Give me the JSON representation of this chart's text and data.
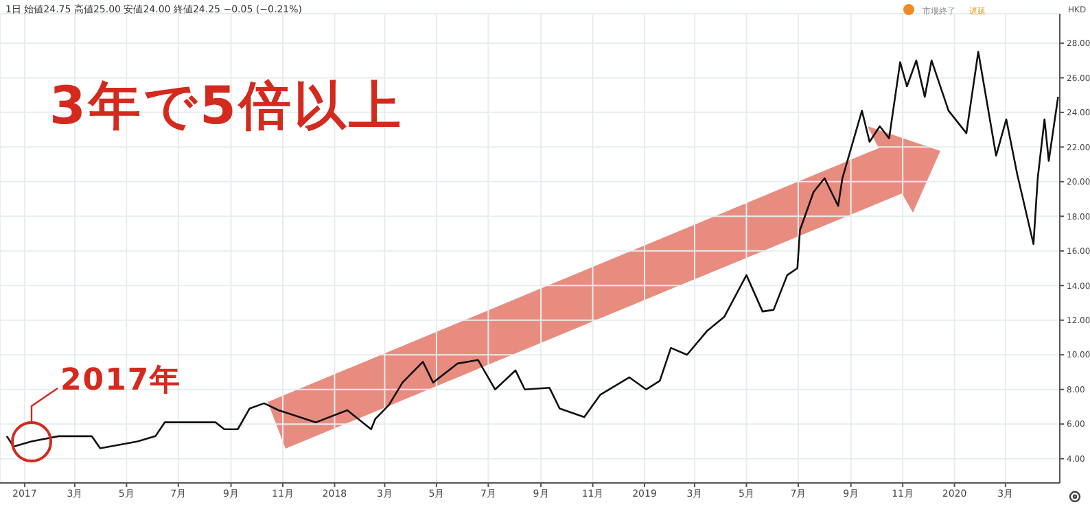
{
  "chart_data": {
    "type": "line",
    "title": "3年で5倍以上",
    "subtitle": "1日 始値24.75 高値25.00 安値24.00 終値24.25 −0.05 (−0.21%)",
    "annotations": [
      "2017年",
      "市場終了",
      "遅延",
      "HKD"
    ],
    "x": [
      "2016-12-11",
      "2016-12-19",
      "2017-01-09",
      "2017-02-10",
      "2017-03-21",
      "2017-03-31",
      "2017-05-14",
      "2017-06-04",
      "2017-06-15",
      "2017-08-14",
      "2017-08-24",
      "2017-09-09",
      "2017-09-23",
      "2017-10-10",
      "2017-10-27",
      "2017-12-10",
      "2018-01-16",
      "2018-02-13",
      "2018-02-18",
      "2018-03-06",
      "2018-03-22",
      "2018-04-15",
      "2018-04-27",
      "2018-05-26",
      "2018-06-19",
      "2018-07-09",
      "2018-08-02",
      "2018-08-13",
      "2018-09-11",
      "2018-09-23",
      "2018-10-22",
      "2018-11-10",
      "2018-12-14",
      "2019-01-03",
      "2019-01-19",
      "2019-02-01",
      "2019-02-20",
      "2019-03-16",
      "2019-04-05",
      "2019-05-01",
      "2019-05-20",
      "2019-06-02",
      "2019-06-18",
      "2019-06-30",
      "2019-07-03",
      "2019-07-19",
      "2019-08-01",
      "2019-08-17",
      "2019-08-22",
      "2019-09-14",
      "2019-09-23",
      "2019-10-05",
      "2019-10-16",
      "2019-10-29",
      "2019-11-06",
      "2019-11-17",
      "2019-11-27",
      "2019-12-05",
      "2019-12-25",
      "2020-01-15",
      "2020-01-29",
      "2020-02-19",
      "2020-03-02",
      "2020-03-15",
      "2020-04-03",
      "2020-04-08",
      "2020-04-16",
      "2020-04-21",
      "2020-05-02"
    ],
    "series": [
      {
        "color": "#111111",
        "values": [
          5.3,
          4.7,
          5.0,
          5.3,
          5.3,
          4.6,
          5.0,
          5.3,
          6.1,
          6.1,
          5.7,
          5.7,
          6.9,
          7.2,
          6.8,
          6.1,
          6.8,
          5.7,
          6.3,
          7.1,
          8.4,
          9.6,
          8.4,
          9.5,
          9.7,
          8.0,
          9.1,
          8.0,
          8.1,
          6.9,
          6.4,
          7.7,
          8.7,
          8.0,
          8.5,
          10.4,
          10.0,
          11.4,
          12.2,
          14.6,
          12.5,
          12.6,
          14.6,
          15.0,
          17.2,
          19.4,
          20.2,
          18.6,
          20.2,
          24.1,
          22.3,
          23.2,
          22.5,
          26.9,
          25.5,
          27.0,
          24.9,
          27.0,
          24.1,
          22.8,
          27.5,
          21.5,
          23.6,
          20.4,
          16.4,
          20.2,
          23.6,
          21.2,
          24.9
        ]
      }
    ],
    "xlim": [
      "2016-12-03",
      "2020-05-04"
    ],
    "xticks": [
      {
        "value": "2017-01-01",
        "label": "2017"
      },
      {
        "value": "2017-03-01",
        "label": "3月"
      },
      {
        "value": "2017-05-01",
        "label": "5月"
      },
      {
        "value": "2017-07-01",
        "label": "7月"
      },
      {
        "value": "2017-09-01",
        "label": "9月"
      },
      {
        "value": "2017-11-01",
        "label": "11月"
      },
      {
        "value": "2018-01-01",
        "label": "2018"
      },
      {
        "value": "2018-03-01",
        "label": "3月"
      },
      {
        "value": "2018-05-01",
        "label": "5月"
      },
      {
        "value": "2018-07-01",
        "label": "7月"
      },
      {
        "value": "2018-09-01",
        "label": "9月"
      },
      {
        "value": "2018-11-01",
        "label": "11月"
      },
      {
        "value": "2019-01-01",
        "label": "2019"
      },
      {
        "value": "2019-03-01",
        "label": "3月"
      },
      {
        "value": "2019-05-01",
        "label": "5月"
      },
      {
        "value": "2019-07-01",
        "label": "7月"
      },
      {
        "value": "2019-09-01",
        "label": "9月"
      },
      {
        "value": "2019-11-01",
        "label": "11月"
      },
      {
        "value": "2020-01-01",
        "label": "2020"
      },
      {
        "value": "2020-03-01",
        "label": "3月"
      }
    ],
    "ylim": [
      2.6,
      29.7
    ],
    "yticks": [
      {
        "value": 4,
        "label": "4.00"
      },
      {
        "value": 6,
        "label": "6.00"
      },
      {
        "value": 8,
        "label": "8.00"
      },
      {
        "value": 10,
        "label": "10.00"
      },
      {
        "value": 12,
        "label": "12.00"
      },
      {
        "value": 14,
        "label": "14.00"
      },
      {
        "value": 16,
        "label": "16.00"
      },
      {
        "value": 18,
        "label": "18.00"
      },
      {
        "value": 20,
        "label": "20.00"
      },
      {
        "value": 22,
        "label": "22.00"
      },
      {
        "value": 24,
        "label": "24.00"
      },
      {
        "value": 26,
        "label": "26.00"
      },
      {
        "value": 28,
        "label": "28.00"
      }
    ],
    "grid": true,
    "marker": "none",
    "line_style": "solid"
  }
}
